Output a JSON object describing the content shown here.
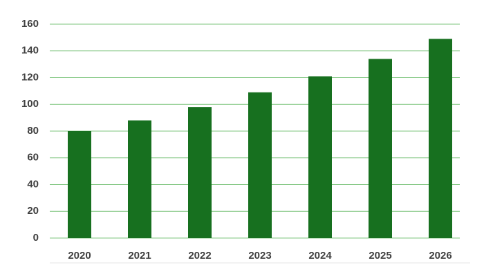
{
  "chart_data": {
    "type": "bar",
    "categories": [
      "2020",
      "2021",
      "2022",
      "2023",
      "2024",
      "2025",
      "2026"
    ],
    "values": [
      80,
      88,
      98,
      109,
      121,
      134,
      149
    ],
    "color": "#17701f",
    "ylim": [
      0,
      160
    ],
    "yticks": [
      0,
      20,
      40,
      60,
      80,
      100,
      120,
      140,
      160
    ],
    "grid": true
  }
}
